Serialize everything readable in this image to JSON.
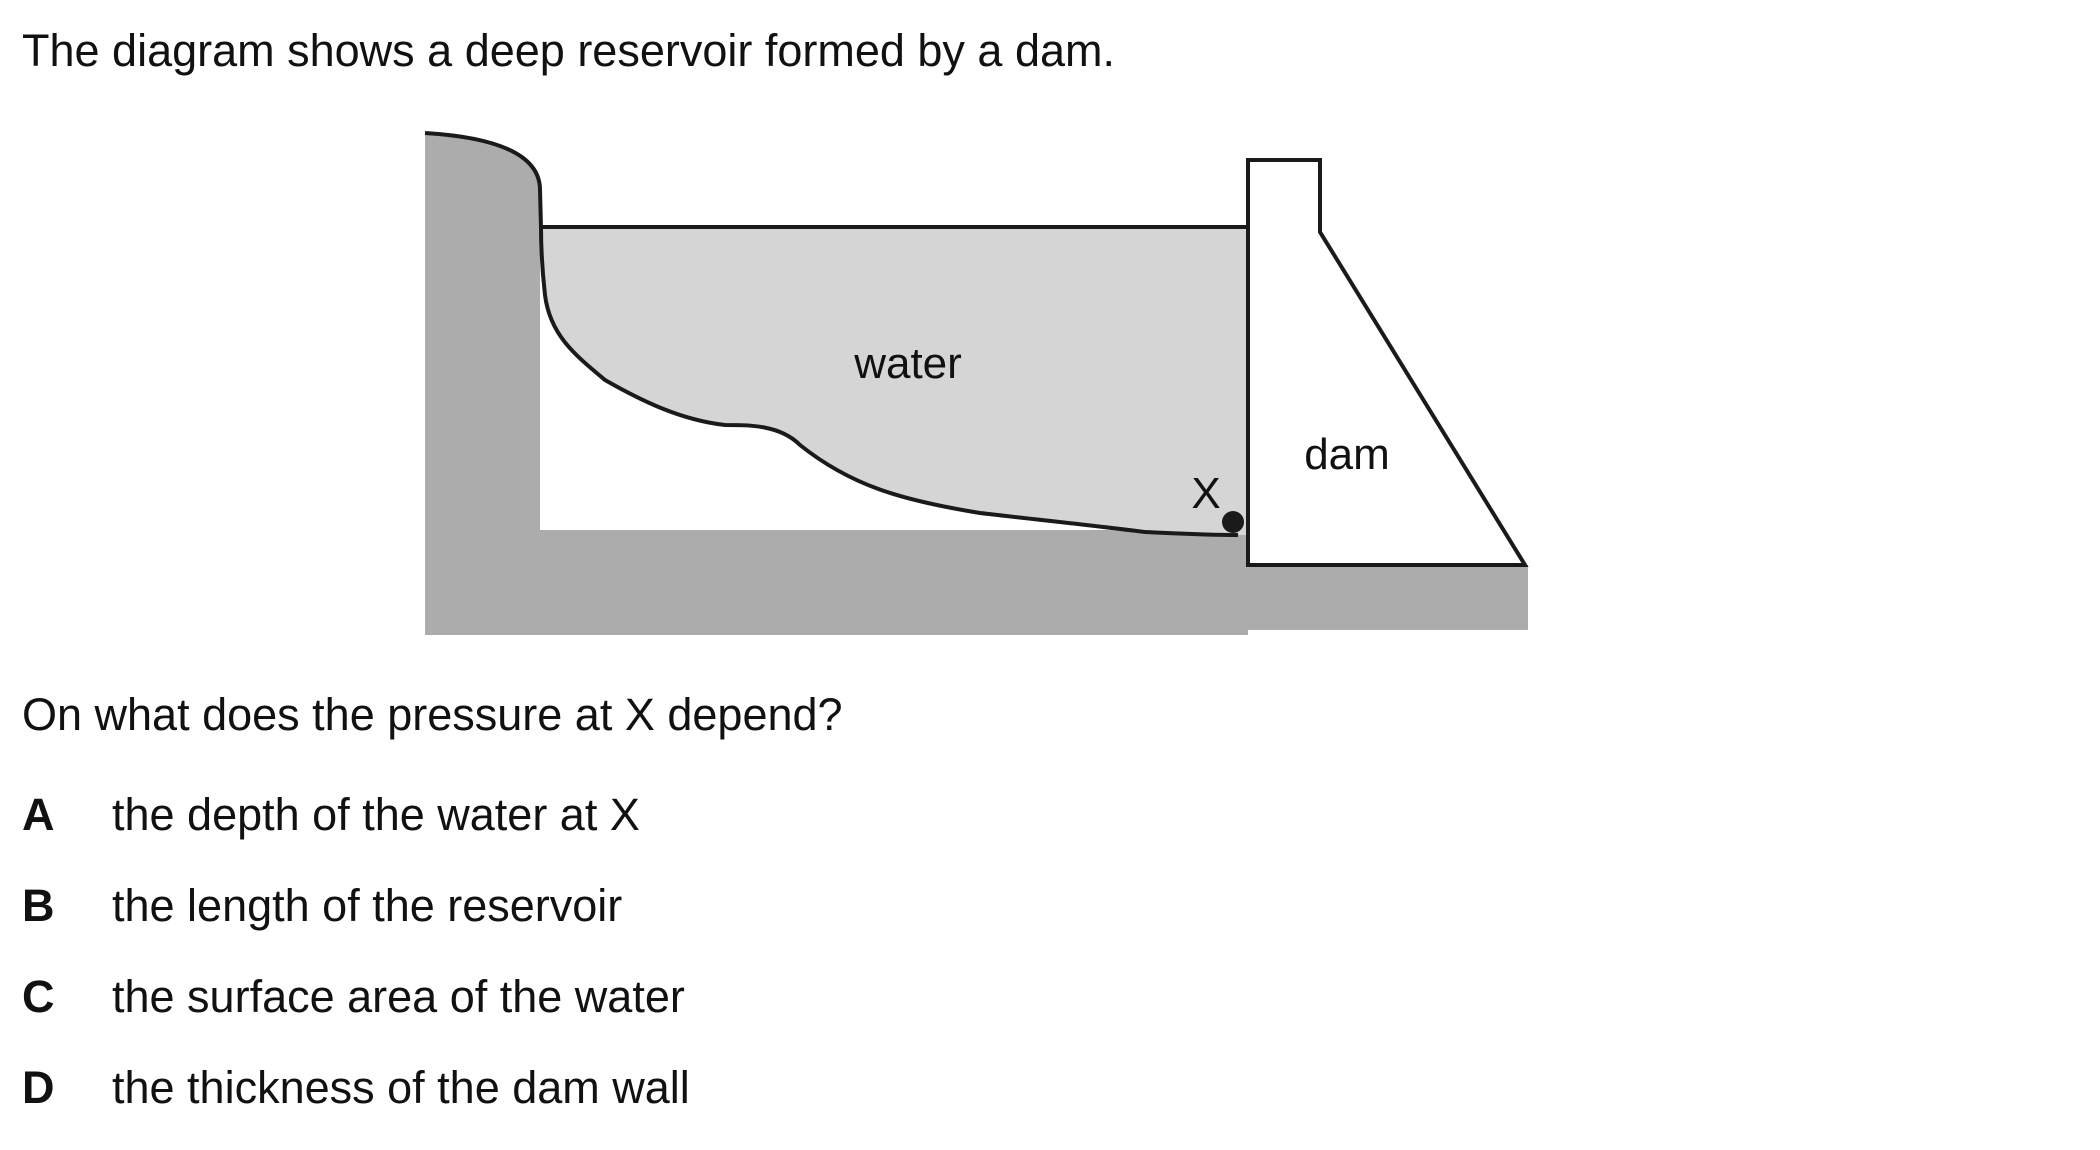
{
  "intro_text": "The diagram shows a deep reservoir formed by a dam.",
  "diagram": {
    "water_label": "water",
    "dam_label": "dam",
    "point_label": "X",
    "colors": {
      "ground": "#acacac",
      "water": "#d5d5d5",
      "dam": "#ffffff",
      "outline": "#1a1a1a"
    }
  },
  "question_text": "On what does the pressure at X depend?",
  "options": [
    {
      "letter": "A",
      "text": "the depth of the water at X"
    },
    {
      "letter": "B",
      "text": "the length of the reservoir"
    },
    {
      "letter": "C",
      "text": "the surface area of the water"
    },
    {
      "letter": "D",
      "text": "the thickness of the dam wall"
    }
  ]
}
